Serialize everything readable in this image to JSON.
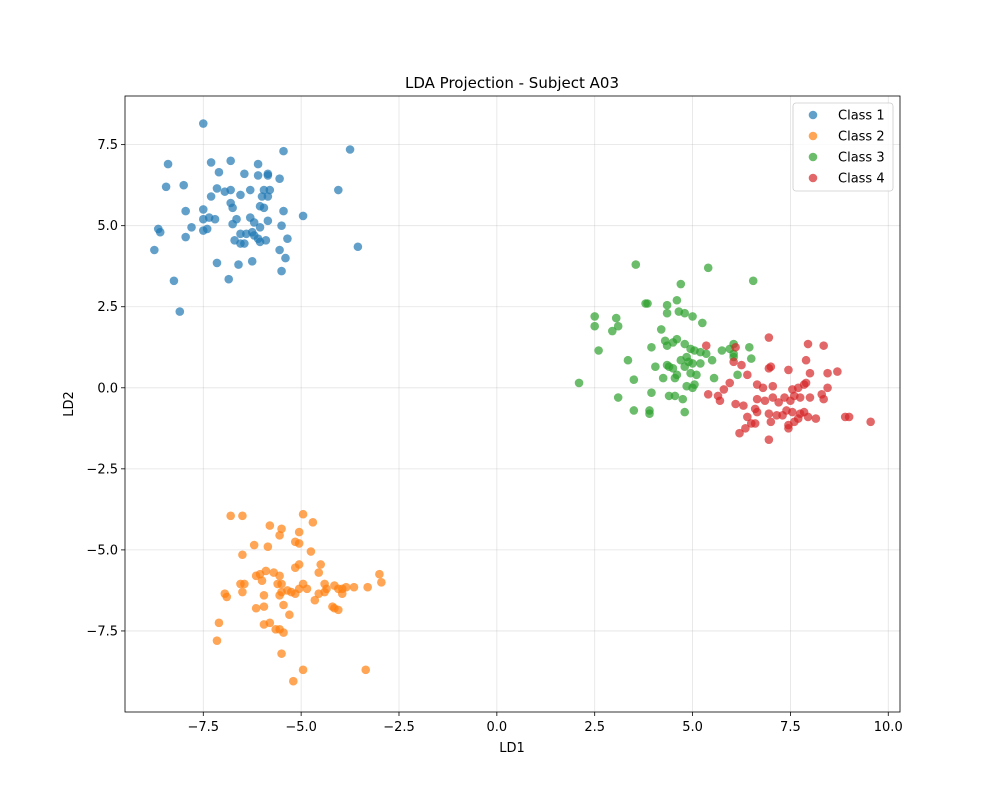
{
  "chart_data": {
    "type": "scatter",
    "title": "LDA Projection - Subject A03",
    "xlabel": "LD1",
    "ylabel": "LD2",
    "xlim": [
      -9.5,
      10.3
    ],
    "ylim": [
      -10.0,
      9.0
    ],
    "grid": true,
    "legend_position": "top-right",
    "x_ticks": [
      -7.5,
      -5.0,
      -2.5,
      0.0,
      2.5,
      5.0,
      7.5,
      10.0
    ],
    "x_tick_labels": [
      "−7.5",
      "−5.0",
      "−2.5",
      "0.0",
      "2.5",
      "5.0",
      "7.5",
      "10.0"
    ],
    "y_ticks": [
      -7.5,
      -5.0,
      -2.5,
      0.0,
      2.5,
      5.0,
      7.5
    ],
    "y_tick_labels": [
      "−7.5",
      "−5.0",
      "−2.5",
      "0.0",
      "2.5",
      "5.0",
      "7.5"
    ],
    "series": [
      {
        "name": "Class 1",
        "color": "#1f77b4",
        "points": [
          [
            -7.5,
            8.15
          ],
          [
            -8.4,
            6.9
          ],
          [
            -7.3,
            6.95
          ],
          [
            -6.8,
            7.0
          ],
          [
            -6.1,
            6.9
          ],
          [
            -5.45,
            7.3
          ],
          [
            -3.75,
            7.35
          ],
          [
            -8.45,
            6.2
          ],
          [
            -8.0,
            6.25
          ],
          [
            -7.1,
            6.65
          ],
          [
            -6.45,
            6.6
          ],
          [
            -6.1,
            6.55
          ],
          [
            -5.85,
            6.6
          ],
          [
            -5.85,
            6.55
          ],
          [
            -5.55,
            6.45
          ],
          [
            -7.15,
            6.15
          ],
          [
            -6.95,
            6.05
          ],
          [
            -6.8,
            6.1
          ],
          [
            -6.3,
            6.1
          ],
          [
            -5.95,
            6.1
          ],
          [
            -5.8,
            6.1
          ],
          [
            -4.05,
            6.1
          ],
          [
            -7.3,
            5.9
          ],
          [
            -6.55,
            5.95
          ],
          [
            -6.0,
            5.9
          ],
          [
            -5.85,
            5.9
          ],
          [
            -7.5,
            5.5
          ],
          [
            -6.75,
            5.55
          ],
          [
            -6.05,
            5.6
          ],
          [
            -5.95,
            5.55
          ],
          [
            -5.45,
            5.45
          ],
          [
            -4.95,
            5.3
          ],
          [
            -7.95,
            5.45
          ],
          [
            -6.8,
            5.7
          ],
          [
            -5.85,
            5.15
          ],
          [
            -7.5,
            5.2
          ],
          [
            -7.35,
            5.25
          ],
          [
            -7.2,
            5.2
          ],
          [
            -6.65,
            5.2
          ],
          [
            -6.3,
            5.25
          ],
          [
            -6.2,
            5.1
          ],
          [
            -8.65,
            4.9
          ],
          [
            -8.6,
            4.8
          ],
          [
            -7.8,
            4.95
          ],
          [
            -7.5,
            4.85
          ],
          [
            -7.4,
            4.9
          ],
          [
            -6.75,
            5.05
          ],
          [
            -6.55,
            4.75
          ],
          [
            -6.4,
            4.75
          ],
          [
            -6.25,
            4.8
          ],
          [
            -6.05,
            4.95
          ],
          [
            -5.5,
            5.0
          ],
          [
            -7.95,
            4.65
          ],
          [
            -6.7,
            4.55
          ],
          [
            -6.55,
            4.45
          ],
          [
            -6.45,
            4.45
          ],
          [
            -6.2,
            4.7
          ],
          [
            -6.1,
            4.6
          ],
          [
            -6.05,
            4.5
          ],
          [
            -5.9,
            4.55
          ],
          [
            -5.35,
            4.6
          ],
          [
            -8.75,
            4.25
          ],
          [
            -5.55,
            4.25
          ],
          [
            -3.55,
            4.35
          ],
          [
            -7.15,
            3.85
          ],
          [
            -6.6,
            3.8
          ],
          [
            -6.25,
            3.9
          ],
          [
            -5.4,
            4.0
          ],
          [
            -5.5,
            3.6
          ],
          [
            -6.85,
            3.35
          ],
          [
            -8.25,
            3.3
          ],
          [
            -8.1,
            2.35
          ]
        ]
      },
      {
        "name": "Class 2",
        "color": "#ff7f0e",
        "points": [
          [
            -6.8,
            -3.95
          ],
          [
            -6.5,
            -3.95
          ],
          [
            -5.8,
            -4.25
          ],
          [
            -5.5,
            -4.35
          ],
          [
            -4.95,
            -3.9
          ],
          [
            -4.7,
            -4.15
          ],
          [
            -5.55,
            -4.55
          ],
          [
            -5.05,
            -4.45
          ],
          [
            -6.2,
            -4.85
          ],
          [
            -5.85,
            -4.9
          ],
          [
            -5.15,
            -4.75
          ],
          [
            -5.05,
            -4.8
          ],
          [
            -4.75,
            -5.05
          ],
          [
            -6.5,
            -5.15
          ],
          [
            -5.15,
            -5.55
          ],
          [
            -5.05,
            -5.45
          ],
          [
            -4.5,
            -5.45
          ],
          [
            -4.55,
            -5.7
          ],
          [
            -6.15,
            -5.8
          ],
          [
            -6.05,
            -5.75
          ],
          [
            -5.9,
            -5.65
          ],
          [
            -5.7,
            -5.7
          ],
          [
            -5.55,
            -5.8
          ],
          [
            -6.55,
            -6.05
          ],
          [
            -6.45,
            -6.05
          ],
          [
            -6.0,
            -5.95
          ],
          [
            -5.6,
            -6.05
          ],
          [
            -5.5,
            -6.05
          ],
          [
            -4.95,
            -6.05
          ],
          [
            -4.4,
            -6.05
          ],
          [
            -3.0,
            -5.75
          ],
          [
            -2.95,
            -6.0
          ],
          [
            -6.95,
            -6.35
          ],
          [
            -6.9,
            -6.45
          ],
          [
            -6.5,
            -6.3
          ],
          [
            -5.95,
            -6.4
          ],
          [
            -5.55,
            -6.4
          ],
          [
            -5.5,
            -6.3
          ],
          [
            -5.35,
            -6.25
          ],
          [
            -5.25,
            -6.3
          ],
          [
            -5.15,
            -6.35
          ],
          [
            -5.05,
            -6.2
          ],
          [
            -4.85,
            -6.2
          ],
          [
            -4.55,
            -6.35
          ],
          [
            -4.4,
            -6.3
          ],
          [
            -4.35,
            -6.2
          ],
          [
            -4.15,
            -6.1
          ],
          [
            -4.05,
            -6.2
          ],
          [
            -3.95,
            -6.2
          ],
          [
            -3.85,
            -6.15
          ],
          [
            -3.65,
            -6.15
          ],
          [
            -3.3,
            -6.15
          ],
          [
            -3.95,
            -6.35
          ],
          [
            -6.15,
            -6.8
          ],
          [
            -5.95,
            -6.75
          ],
          [
            -5.45,
            -6.7
          ],
          [
            -4.65,
            -6.55
          ],
          [
            -4.2,
            -6.75
          ],
          [
            -4.15,
            -6.8
          ],
          [
            -4.05,
            -6.85
          ],
          [
            -5.3,
            -7.0
          ],
          [
            -7.1,
            -7.25
          ],
          [
            -5.95,
            -7.3
          ],
          [
            -5.8,
            -7.25
          ],
          [
            -5.65,
            -7.45
          ],
          [
            -5.55,
            -7.45
          ],
          [
            -5.45,
            -7.55
          ],
          [
            -7.15,
            -7.8
          ],
          [
            -5.5,
            -8.2
          ],
          [
            -4.95,
            -8.7
          ],
          [
            -3.35,
            -8.7
          ],
          [
            -5.2,
            -9.05
          ]
        ]
      },
      {
        "name": "Class 3",
        "color": "#2ca02c",
        "points": [
          [
            3.55,
            3.8
          ],
          [
            5.4,
            3.7
          ],
          [
            4.7,
            3.2
          ],
          [
            6.55,
            3.3
          ],
          [
            3.8,
            2.6
          ],
          [
            3.85,
            2.6
          ],
          [
            4.35,
            2.55
          ],
          [
            4.6,
            2.7
          ],
          [
            4.35,
            2.3
          ],
          [
            4.65,
            2.35
          ],
          [
            4.8,
            2.3
          ],
          [
            5.0,
            2.2
          ],
          [
            5.25,
            2.0
          ],
          [
            2.5,
            2.2
          ],
          [
            2.5,
            1.9
          ],
          [
            3.05,
            2.15
          ],
          [
            3.1,
            1.9
          ],
          [
            2.95,
            1.75
          ],
          [
            4.2,
            1.8
          ],
          [
            2.6,
            1.15
          ],
          [
            3.95,
            1.25
          ],
          [
            4.3,
            1.45
          ],
          [
            4.35,
            1.3
          ],
          [
            4.5,
            1.4
          ],
          [
            4.6,
            1.5
          ],
          [
            4.8,
            1.35
          ],
          [
            4.95,
            1.2
          ],
          [
            5.05,
            1.15
          ],
          [
            5.35,
            1.05
          ],
          [
            5.2,
            1.1
          ],
          [
            5.75,
            1.15
          ],
          [
            5.95,
            1.2
          ],
          [
            6.05,
            1.35
          ],
          [
            6.45,
            1.25
          ],
          [
            3.35,
            0.85
          ],
          [
            4.35,
            0.7
          ],
          [
            4.4,
            0.65
          ],
          [
            4.5,
            0.6
          ],
          [
            4.7,
            0.85
          ],
          [
            4.85,
            0.95
          ],
          [
            4.9,
            0.8
          ],
          [
            5.0,
            0.75
          ],
          [
            5.2,
            0.75
          ],
          [
            5.5,
            0.85
          ],
          [
            6.05,
            1.05
          ],
          [
            6.5,
            0.9
          ],
          [
            4.05,
            0.65
          ],
          [
            4.25,
            0.3
          ],
          [
            4.55,
            0.3
          ],
          [
            4.6,
            0.4
          ],
          [
            4.8,
            0.65
          ],
          [
            4.95,
            0.45
          ],
          [
            5.1,
            0.4
          ],
          [
            5.55,
            0.3
          ],
          [
            6.15,
            0.4
          ],
          [
            2.1,
            0.15
          ],
          [
            3.5,
            0.25
          ],
          [
            4.85,
            0.05
          ],
          [
            5.0,
            0.0
          ],
          [
            5.05,
            0.1
          ],
          [
            3.95,
            -0.15
          ],
          [
            4.4,
            -0.25
          ],
          [
            4.55,
            -0.25
          ],
          [
            4.75,
            -0.35
          ],
          [
            3.1,
            -0.3
          ],
          [
            3.5,
            -0.7
          ],
          [
            3.9,
            -0.7
          ],
          [
            3.9,
            -0.8
          ],
          [
            4.8,
            -0.75
          ],
          [
            6.05,
            0.95
          ]
        ]
      },
      {
        "name": "Class 4",
        "color": "#d62728",
        "points": [
          [
            5.35,
            1.3
          ],
          [
            6.1,
            1.25
          ],
          [
            6.95,
            1.55
          ],
          [
            7.95,
            1.35
          ],
          [
            8.35,
            1.3
          ],
          [
            6.05,
            0.8
          ],
          [
            6.25,
            0.7
          ],
          [
            6.4,
            0.4
          ],
          [
            6.95,
            0.6
          ],
          [
            7.0,
            0.65
          ],
          [
            7.9,
            0.85
          ],
          [
            8.45,
            0.45
          ],
          [
            8.7,
            0.5
          ],
          [
            5.95,
            0.15
          ],
          [
            6.65,
            0.1
          ],
          [
            6.8,
            0.0
          ],
          [
            7.05,
            0.05
          ],
          [
            7.45,
            0.55
          ],
          [
            7.55,
            -0.05
          ],
          [
            7.7,
            0.0
          ],
          [
            7.85,
            0.1
          ],
          [
            7.9,
            0.15
          ],
          [
            8.0,
            0.45
          ],
          [
            8.45,
            0.0
          ],
          [
            5.8,
            -0.05
          ],
          [
            5.65,
            -0.25
          ],
          [
            5.7,
            -0.4
          ],
          [
            6.65,
            -0.35
          ],
          [
            6.85,
            -0.4
          ],
          [
            7.05,
            -0.3
          ],
          [
            7.2,
            -0.45
          ],
          [
            7.35,
            -0.3
          ],
          [
            7.5,
            -0.4
          ],
          [
            7.6,
            -0.25
          ],
          [
            7.75,
            -0.3
          ],
          [
            8.0,
            -0.3
          ],
          [
            8.3,
            -0.2
          ],
          [
            8.35,
            -0.35
          ],
          [
            5.4,
            -0.2
          ],
          [
            6.1,
            -0.5
          ],
          [
            6.3,
            -0.55
          ],
          [
            6.6,
            -0.65
          ],
          [
            6.65,
            -0.75
          ],
          [
            6.95,
            -0.8
          ],
          [
            7.15,
            -0.85
          ],
          [
            7.3,
            -0.85
          ],
          [
            7.4,
            -0.7
          ],
          [
            7.55,
            -0.75
          ],
          [
            7.75,
            -0.8
          ],
          [
            7.85,
            -0.75
          ],
          [
            7.95,
            -0.9
          ],
          [
            8.15,
            -0.95
          ],
          [
            8.9,
            -0.9
          ],
          [
            9.0,
            -0.9
          ],
          [
            9.55,
            -1.05
          ],
          [
            6.4,
            -0.9
          ],
          [
            6.5,
            -1.1
          ],
          [
            6.6,
            -1.1
          ],
          [
            6.35,
            -1.25
          ],
          [
            6.2,
            -1.4
          ],
          [
            7.0,
            -1.05
          ],
          [
            7.45,
            -1.15
          ],
          [
            7.6,
            -1.05
          ],
          [
            7.7,
            -0.95
          ],
          [
            6.95,
            -1.6
          ],
          [
            7.45,
            -1.25
          ]
        ]
      }
    ]
  }
}
